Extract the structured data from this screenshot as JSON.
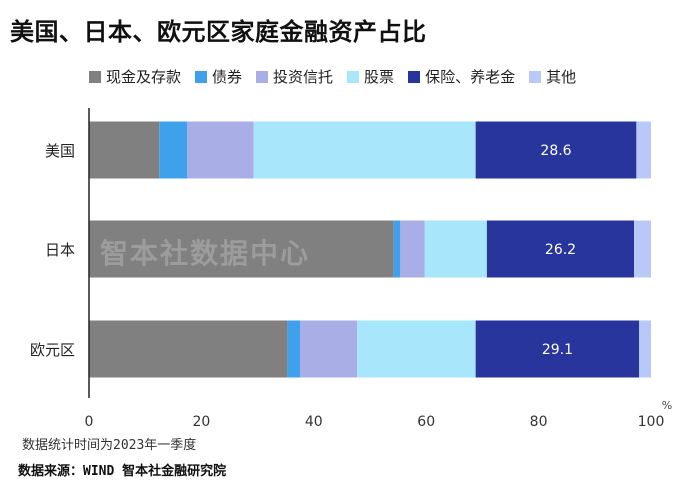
{
  "chart_data": {
    "type": "bar",
    "orientation": "horizontal",
    "stacked": true,
    "title": "美国、日本、欧元区家庭金融资产占比",
    "categories": [
      "美国",
      "日本",
      "欧元区"
    ],
    "series": [
      {
        "name": "现金及存款",
        "color": "#808080",
        "values": [
          12.5,
          54.2,
          35.3
        ]
      },
      {
        "name": "债券",
        "color": "#3fa0ec",
        "values": [
          5.0,
          1.2,
          2.3
        ]
      },
      {
        "name": "投资信托",
        "color": "#a9aee6",
        "values": [
          11.8,
          4.3,
          10.1
        ]
      },
      {
        "name": "股票",
        "color": "#a8e6fb",
        "values": [
          39.5,
          11.1,
          21.1
        ]
      },
      {
        "name": "保险、养老金",
        "color": "#27359c",
        "values": [
          28.6,
          26.2,
          29.1
        ]
      },
      {
        "name": "其他",
        "color": "#b8c9f7",
        "values": [
          2.6,
          3.0,
          2.1
        ]
      }
    ],
    "data_labels": {
      "series": "保险、养老金",
      "values": [
        "28.6",
        "26.2",
        "29.1"
      ]
    },
    "x_ticks": [
      "0",
      "20",
      "40",
      "60",
      "80",
      "100"
    ],
    "x_unit": "%",
    "xlim": [
      0,
      100
    ]
  },
  "watermark": "智本社数据中心",
  "footnote": "数据统计时间为2023年一季度",
  "source": "数据来源：WIND 智本社金融研究院"
}
